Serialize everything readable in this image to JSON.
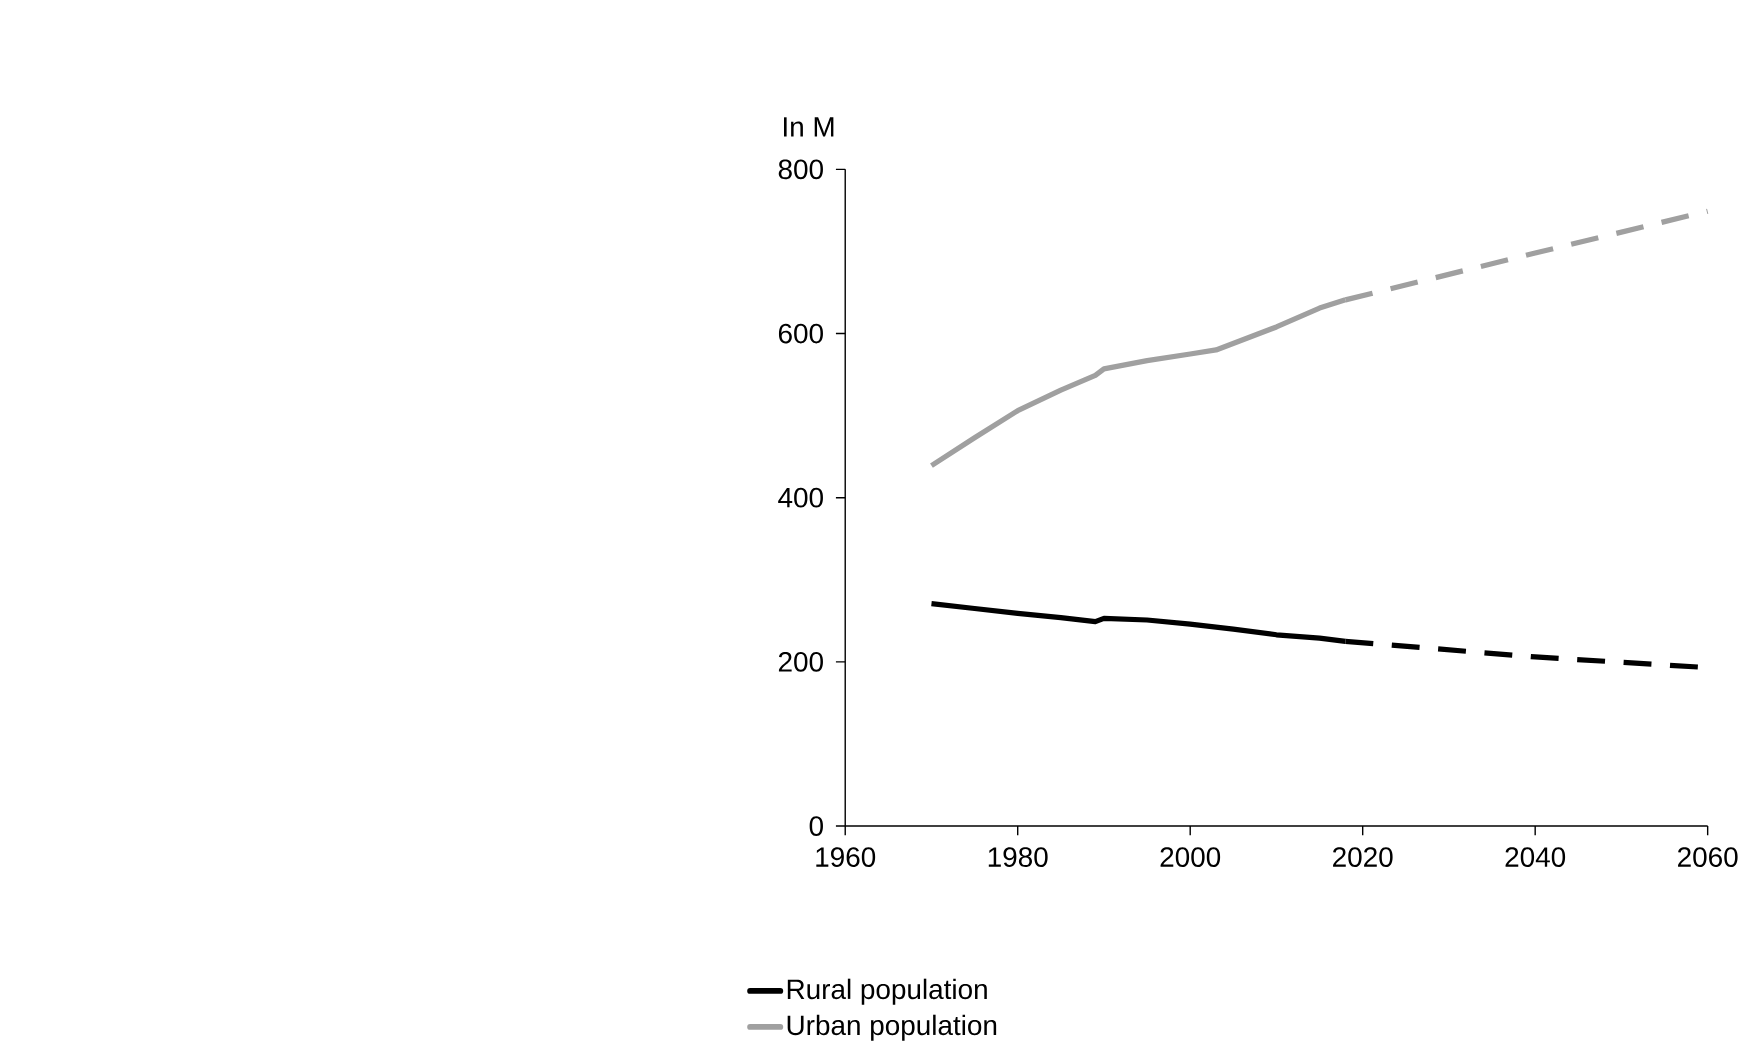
{
  "chart_data": {
    "type": "line",
    "ylabel": "In M",
    "xlim": [
      1960,
      2060
    ],
    "ylim": [
      0,
      800
    ],
    "xticks": [
      1960,
      1980,
      2000,
      2020,
      2040,
      2060
    ],
    "yticks": [
      0,
      200,
      400,
      600,
      800
    ],
    "grid": false,
    "legend": "bottom left",
    "marker": "none",
    "series": [
      {
        "name": "Rural population",
        "color": "#000000",
        "line_style": "solid",
        "x": [
          1970,
          1975,
          1980,
          1985,
          1989,
          1990,
          1995,
          2000,
          2005,
          2010,
          2015,
          2018
        ],
        "values": [
          271,
          265,
          259,
          254,
          249,
          253,
          251,
          246,
          240,
          233,
          229,
          225
        ]
      },
      {
        "name": "Urban population",
        "color": "#a0a0a0",
        "line_style": "solid",
        "x": [
          1970,
          1975,
          1980,
          1985,
          1989,
          1990,
          1995,
          2000,
          2003,
          2010,
          2015,
          2018
        ],
        "values": [
          439,
          473,
          506,
          531,
          549,
          557,
          567,
          575,
          580,
          608,
          631,
          641
        ]
      },
      {
        "color": "#000000",
        "line_style": "dashed",
        "x": [
          2018,
          2040,
          2060
        ],
        "values": [
          225,
          206,
          193
        ]
      },
      {
        "color": "#a0a0a0",
        "line_style": "dashed",
        "x": [
          2018,
          2040,
          2060
        ],
        "values": [
          641,
          698,
          749
        ]
      }
    ]
  }
}
